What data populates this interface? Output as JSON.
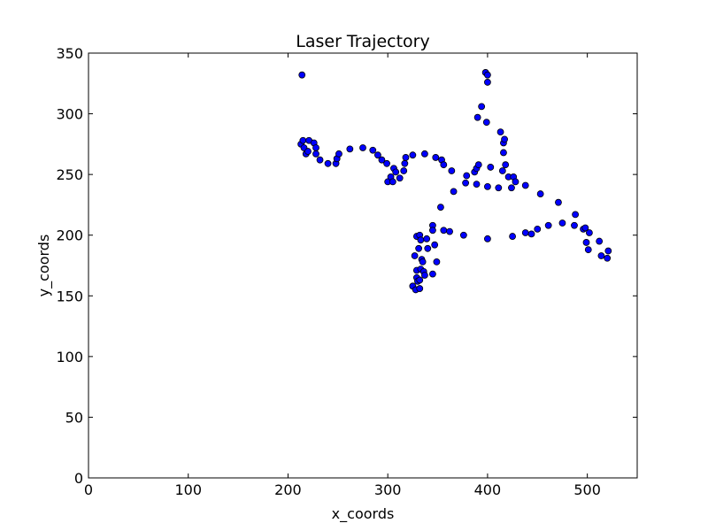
{
  "chart_data": {
    "type": "scatter",
    "title": "Laser Trajectory",
    "xlabel": "x_coords",
    "ylabel": "y_coords",
    "xlim": [
      0,
      550
    ],
    "ylim": [
      0,
      350
    ],
    "xticks": [
      0,
      100,
      200,
      300,
      400,
      500
    ],
    "yticks": [
      0,
      50,
      100,
      150,
      200,
      250,
      300,
      350
    ],
    "grid": false,
    "legend": "none",
    "marker_color": "#0000ff",
    "marker_edge": "#000000",
    "points": [
      {
        "x": 214,
        "y": 332
      },
      {
        "x": 213,
        "y": 275
      },
      {
        "x": 215,
        "y": 278
      },
      {
        "x": 216,
        "y": 272
      },
      {
        "x": 218,
        "y": 267
      },
      {
        "x": 220,
        "y": 269
      },
      {
        "x": 221,
        "y": 278
      },
      {
        "x": 226,
        "y": 276
      },
      {
        "x": 228,
        "y": 272
      },
      {
        "x": 228,
        "y": 267
      },
      {
        "x": 232,
        "y": 262
      },
      {
        "x": 240,
        "y": 259
      },
      {
        "x": 248,
        "y": 259
      },
      {
        "x": 249,
        "y": 263
      },
      {
        "x": 251,
        "y": 267
      },
      {
        "x": 262,
        "y": 271
      },
      {
        "x": 275,
        "y": 272
      },
      {
        "x": 285,
        "y": 270
      },
      {
        "x": 290,
        "y": 266
      },
      {
        "x": 294,
        "y": 262
      },
      {
        "x": 299,
        "y": 259
      },
      {
        "x": 300,
        "y": 244
      },
      {
        "x": 303,
        "y": 248
      },
      {
        "x": 305,
        "y": 244
      },
      {
        "x": 306,
        "y": 255
      },
      {
        "x": 308,
        "y": 252
      },
      {
        "x": 312,
        "y": 247
      },
      {
        "x": 316,
        "y": 253
      },
      {
        "x": 317,
        "y": 259
      },
      {
        "x": 318,
        "y": 264
      },
      {
        "x": 325,
        "y": 266
      },
      {
        "x": 337,
        "y": 267
      },
      {
        "x": 348,
        "y": 264
      },
      {
        "x": 354,
        "y": 262
      },
      {
        "x": 356,
        "y": 258
      },
      {
        "x": 364,
        "y": 253
      },
      {
        "x": 366,
        "y": 236
      },
      {
        "x": 378,
        "y": 243
      },
      {
        "x": 379,
        "y": 249
      },
      {
        "x": 387,
        "y": 252
      },
      {
        "x": 389,
        "y": 255
      },
      {
        "x": 389,
        "y": 242
      },
      {
        "x": 391,
        "y": 258
      },
      {
        "x": 400,
        "y": 240
      },
      {
        "x": 403,
        "y": 256
      },
      {
        "x": 411,
        "y": 239
      },
      {
        "x": 415,
        "y": 253
      },
      {
        "x": 418,
        "y": 258
      },
      {
        "x": 421,
        "y": 248
      },
      {
        "x": 424,
        "y": 239
      },
      {
        "x": 426,
        "y": 248
      },
      {
        "x": 428,
        "y": 244
      },
      {
        "x": 438,
        "y": 241
      },
      {
        "x": 453,
        "y": 234
      },
      {
        "x": 471,
        "y": 227
      },
      {
        "x": 488,
        "y": 217
      },
      {
        "x": 390,
        "y": 297
      },
      {
        "x": 394,
        "y": 306
      },
      {
        "x": 398,
        "y": 334
      },
      {
        "x": 400,
        "y": 332
      },
      {
        "x": 400,
        "y": 326
      },
      {
        "x": 399,
        "y": 293
      },
      {
        "x": 413,
        "y": 285
      },
      {
        "x": 416,
        "y": 276
      },
      {
        "x": 417,
        "y": 279
      },
      {
        "x": 416,
        "y": 268
      },
      {
        "x": 353,
        "y": 223
      },
      {
        "x": 345,
        "y": 208
      },
      {
        "x": 345,
        "y": 204
      },
      {
        "x": 356,
        "y": 204
      },
      {
        "x": 362,
        "y": 203
      },
      {
        "x": 376,
        "y": 200
      },
      {
        "x": 400,
        "y": 197
      },
      {
        "x": 425,
        "y": 199
      },
      {
        "x": 438,
        "y": 202
      },
      {
        "x": 444,
        "y": 201
      },
      {
        "x": 450,
        "y": 205
      },
      {
        "x": 461,
        "y": 208
      },
      {
        "x": 475,
        "y": 210
      },
      {
        "x": 487,
        "y": 208
      },
      {
        "x": 496,
        "y": 205
      },
      {
        "x": 498,
        "y": 206
      },
      {
        "x": 502,
        "y": 202
      },
      {
        "x": 499,
        "y": 194
      },
      {
        "x": 501,
        "y": 188
      },
      {
        "x": 512,
        "y": 195
      },
      {
        "x": 514,
        "y": 183
      },
      {
        "x": 520,
        "y": 181
      },
      {
        "x": 521,
        "y": 187
      },
      {
        "x": 329,
        "y": 199
      },
      {
        "x": 332,
        "y": 200
      },
      {
        "x": 333,
        "y": 196
      },
      {
        "x": 339,
        "y": 197
      },
      {
        "x": 331,
        "y": 189
      },
      {
        "x": 340,
        "y": 189
      },
      {
        "x": 347,
        "y": 192
      },
      {
        "x": 327,
        "y": 183
      },
      {
        "x": 334,
        "y": 180
      },
      {
        "x": 335,
        "y": 178
      },
      {
        "x": 349,
        "y": 178
      },
      {
        "x": 329,
        "y": 171
      },
      {
        "x": 333,
        "y": 172
      },
      {
        "x": 336,
        "y": 170
      },
      {
        "x": 337,
        "y": 167
      },
      {
        "x": 345,
        "y": 168
      },
      {
        "x": 329,
        "y": 165
      },
      {
        "x": 330,
        "y": 162
      },
      {
        "x": 332,
        "y": 163
      },
      {
        "x": 325,
        "y": 158
      },
      {
        "x": 328,
        "y": 155
      },
      {
        "x": 332,
        "y": 156
      }
    ]
  }
}
